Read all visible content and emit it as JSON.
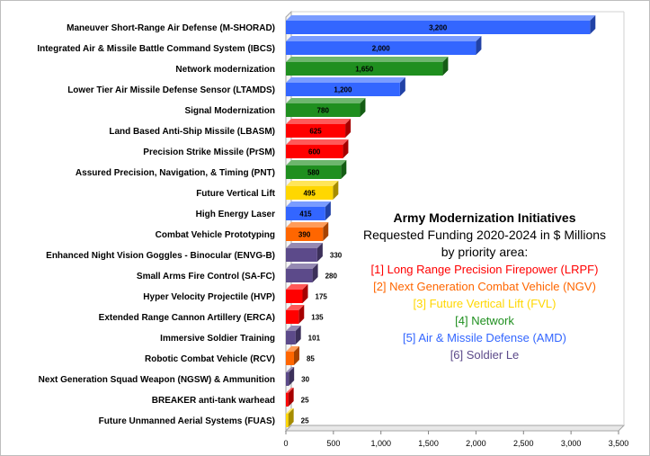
{
  "chart_data": {
    "type": "bar",
    "orientation": "horizontal",
    "title": "Army Modernization Initiatives",
    "subtitle_lines": [
      "Requested Funding 2020-2024 in $ Millions",
      "by priority area:"
    ],
    "xlim": [
      0,
      3500
    ],
    "x_ticks": [
      "0",
      "500",
      "1,000",
      "1,500",
      "2,000",
      "2,500",
      "3,000",
      "3,500"
    ],
    "x_tick_values": [
      0,
      500,
      1000,
      1500,
      2000,
      2500,
      3000,
      3500
    ],
    "grid": false,
    "bar_style": "3d",
    "priority_areas": [
      {
        "label": "[1] Long Range Precision Firepower (LRPF)",
        "color": "#ff0000"
      },
      {
        "label": "[2] Next Generation Combat Vehicle (NGV)",
        "color": "#ff6600"
      },
      {
        "label": "[3] Future Vertical Lift (FVL)",
        "color": "#ffd700"
      },
      {
        "label": "[4] Network",
        "color": "#1f8f1f"
      },
      {
        "label": "[5] Air & Missile Defense (AMD)",
        "color": "#3366ff"
      },
      {
        "label": "[6] Soldier Le",
        "color": "#5c4a8a"
      }
    ],
    "bars": [
      {
        "category": "Maneuver Short-Range Air Defense (M-SHORAD)",
        "value": 3200,
        "label": "3,200",
        "area": 5
      },
      {
        "category": "Integrated Air & Missile Battle Command System (IBCS)",
        "value": 2000,
        "label": "2,000",
        "area": 5
      },
      {
        "category": "Network modernization",
        "value": 1650,
        "label": "1,650",
        "area": 4
      },
      {
        "category": "Lower Tier Air Missile Defense Sensor (LTAMDS)",
        "value": 1200,
        "label": "1,200",
        "area": 5
      },
      {
        "category": "Signal Modernization",
        "value": 780,
        "label": "780",
        "area": 4
      },
      {
        "category": "Land Based Anti-Ship Missile (LBASM)",
        "value": 625,
        "label": "625",
        "area": 1
      },
      {
        "category": "Precision Strike Missile (PrSM)",
        "value": 600,
        "label": "600",
        "area": 1
      },
      {
        "category": "Assured Precision, Navigation, & Timing (PNT)",
        "value": 580,
        "label": "580",
        "area": 4
      },
      {
        "category": "Future Vertical Lift",
        "value": 495,
        "label": "495",
        "area": 3
      },
      {
        "category": "High Energy Laser",
        "value": 415,
        "label": "415",
        "area": 5
      },
      {
        "category": "Combat Vehicle Prototyping",
        "value": 390,
        "label": "390",
        "area": 2
      },
      {
        "category": "Enhanced Night Vision Goggles - Binocular (ENVG-B)",
        "value": 330,
        "label": "330",
        "area": 6
      },
      {
        "category": "Small Arms Fire Control (SA-FC)",
        "value": 280,
        "label": "280",
        "area": 6
      },
      {
        "category": "Hyper Velocity Projectile (HVP)",
        "value": 175,
        "label": "175",
        "area": 1
      },
      {
        "category": "Extended Range Cannon Artillery (ERCA)",
        "value": 135,
        "label": "135",
        "area": 1
      },
      {
        "category": "Immersive Soldier Training",
        "value": 101,
        "label": "101",
        "area": 6
      },
      {
        "category": "Robotic Combat Vehicle (RCV)",
        "value": 85,
        "label": "85",
        "area": 2
      },
      {
        "category": "Next Generation Squad Weapon (NGSW) & Ammunition",
        "value": 30,
        "label": "30",
        "area": 6
      },
      {
        "category": "BREAKER anti-tank warhead",
        "value": 25,
        "label": "25",
        "area": 1
      },
      {
        "category": "Future Unmanned Aerial Systems (FUAS)",
        "value": 25,
        "label": "25",
        "area": 3
      }
    ]
  }
}
